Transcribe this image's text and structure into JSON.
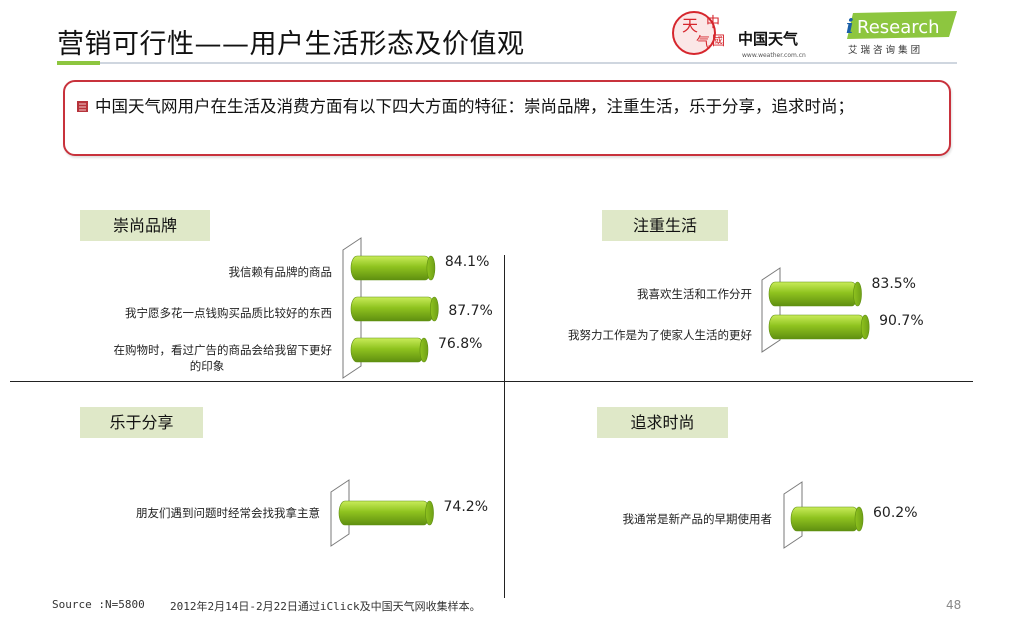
{
  "title": "营销可行性——用户生活形态及价值观",
  "logos": {
    "weather_text": "中国天气",
    "weather_url": "www.weather.com.cn",
    "iresearch_name": "Research",
    "iresearch_sub": "艾 瑞 咨 询 集 团"
  },
  "callout": {
    "text": "中国天气网用户在生活及消费方面有以下四大方面的特征：崇尚品牌，注重生活，乐于分享，追求时尚；"
  },
  "colors": {
    "bar": "#8fc31f",
    "bar_dark": "#5f8f10",
    "bar_light": "#c9ec5a",
    "label_bg": "#dfe8c8",
    "callout_border": "#c8323c"
  },
  "chart_data": [
    {
      "type": "bar",
      "orientation": "horizontal",
      "title": "崇尚品牌",
      "categories": [
        "我信赖有品牌的商品",
        "我宁愿多花一点钱购买品质比较好的东西",
        "在购物时，看过广告的商品会给我留下更好的印象"
      ],
      "values": [
        84.1,
        87.7,
        76.8
      ],
      "value_labels": [
        "84.1%",
        "87.7%",
        "76.8%"
      ],
      "xlim": [
        0,
        100
      ]
    },
    {
      "type": "bar",
      "orientation": "horizontal",
      "title": "注重生活",
      "categories": [
        "我喜欢生活和工作分开",
        "我努力工作是为了使家人生活的更好"
      ],
      "values": [
        83.5,
        90.7
      ],
      "value_labels": [
        "83.5%",
        "90.7%"
      ],
      "xlim": [
        0,
        100
      ]
    },
    {
      "type": "bar",
      "orientation": "horizontal",
      "title": "乐于分享",
      "categories": [
        "朋友们遇到问题时经常会找我拿主意"
      ],
      "values": [
        74.2
      ],
      "value_labels": [
        "74.2%"
      ],
      "xlim": [
        0,
        100
      ]
    },
    {
      "type": "bar",
      "orientation": "horizontal",
      "title": "追求时尚",
      "categories": [
        "我通常是新产品的早期使用者"
      ],
      "values": [
        60.2
      ],
      "value_labels": [
        "60.2%"
      ],
      "xlim": [
        0,
        100
      ]
    }
  ],
  "footer": {
    "source": "Source :N=5800",
    "note": "2012年2月14日-2月22日通过iClick及中国天气网收集样本。",
    "page": "48"
  }
}
